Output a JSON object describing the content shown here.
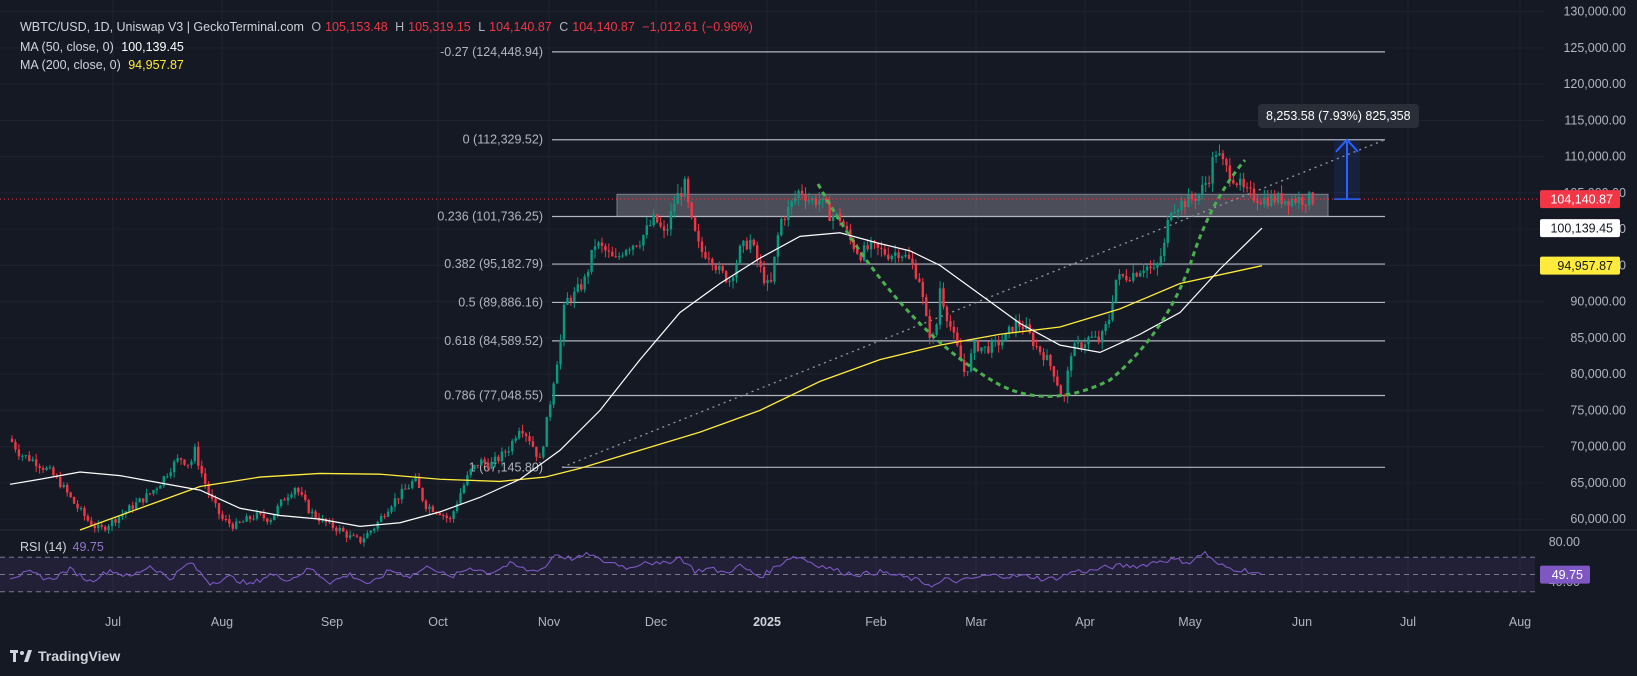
{
  "header": {
    "symbol": "WBTC/USD, 1D, Uniswap V3 | GeckoTerminal.com",
    "open_label": "O",
    "open": "105,153.48",
    "high_label": "H",
    "high": "105,319.15",
    "low_label": "L",
    "low": "104,140.87",
    "close_label": "C",
    "close": "104,140.87",
    "change": "−1,012.61 (−0.96%)",
    "ma50_label": "MA (50, close, 0)",
    "ma50_value": "100,139.45",
    "ma200_label": "MA (200, close, 0)",
    "ma200_value": "94,957.87"
  },
  "rsi": {
    "label": "RSI (14)",
    "value": "49.75"
  },
  "branding": {
    "name": "TradingView"
  },
  "tooltip": {
    "text": "8,253.58 (7.93%) 825,358"
  },
  "colors": {
    "background": "#151924",
    "up": "#089981",
    "down": "#f23645",
    "ma50": "#ffffff",
    "ma200": "#ffeb3b",
    "rsi": "#7e57c2",
    "cup": "#4caf50",
    "arrow": "#2962ff",
    "fib": "#b2b5be"
  },
  "chart_data": {
    "type": "candlestick",
    "x_tick_labels": [
      "Jul",
      "Aug",
      "Sep",
      "Oct",
      "Nov",
      "Dec",
      "2025",
      "Feb",
      "Mar",
      "Apr",
      "May",
      "Jun",
      "Jul",
      "Aug"
    ],
    "y_axis": {
      "ticks": [
        "60,000.00",
        "65,000.00",
        "70,000.00",
        "75,000.00",
        "80,000.00",
        "85,000.00",
        "90,000.00",
        "95,000.00",
        "100,000.00",
        "105,000.00",
        "110,000.00",
        "115,000.00",
        "120,000.00",
        "125,000.00",
        "130,000.00"
      ],
      "tick_values": [
        60000,
        65000,
        70000,
        75000,
        80000,
        85000,
        90000,
        95000,
        100000,
        105000,
        110000,
        115000,
        120000,
        125000,
        130000
      ],
      "range": [
        58500,
        130500
      ]
    },
    "rsi_axis": {
      "ticks": [
        "80.00",
        "40.00"
      ],
      "tick_values": [
        80,
        40
      ]
    },
    "price_badges": [
      {
        "label": "104,140.87",
        "value": 104140.87,
        "bg": "#f23645",
        "fg": "#ffffff"
      },
      {
        "label": "100,139.45",
        "value": 100139.45,
        "bg": "#ffffff",
        "fg": "#131722"
      },
      {
        "label": "94,957.87",
        "value": 94957.87,
        "bg": "#ffeb3b",
        "fg": "#131722"
      }
    ],
    "rsi_badge": {
      "label": "49.75",
      "value": 49.75
    },
    "fib_levels": [
      {
        "label": "-0.27 (124,448.94)",
        "value": 124448.94
      },
      {
        "label": "0 (112,329.52)",
        "value": 112329.52
      },
      {
        "label": "0.236 (101,736.25)",
        "value": 101736.25
      },
      {
        "label": "0.382 (95,182.79)",
        "value": 95182.79
      },
      {
        "label": "0.5 (89,886.16)",
        "value": 89886.16
      },
      {
        "label": "0.618 (84,589.52)",
        "value": 84589.52
      },
      {
        "label": "0.786 (77,048.55)",
        "value": 77048.55
      },
      {
        "label": "1 (67,145.80)",
        "value": 67145.8
      }
    ],
    "resistance_zone": [
      101736,
      104800
    ],
    "last_price": 104140.87,
    "price_path": [
      [
        0,
        70500
      ],
      [
        8,
        71500
      ],
      [
        20,
        69000
      ],
      [
        35,
        68000
      ],
      [
        50,
        66500
      ],
      [
        60,
        65000
      ],
      [
        75,
        62000
      ],
      [
        90,
        59500
      ],
      [
        100,
        58500
      ],
      [
        115,
        60000
      ],
      [
        130,
        61500
      ],
      [
        150,
        63500
      ],
      [
        160,
        65000
      ],
      [
        170,
        67000
      ],
      [
        180,
        68500
      ],
      [
        190,
        67500
      ],
      [
        195,
        69500
      ],
      [
        200,
        67000
      ],
      [
        210,
        63000
      ],
      [
        222,
        60000
      ],
      [
        235,
        59000
      ],
      [
        255,
        60500
      ],
      [
        270,
        60000
      ],
      [
        285,
        63000
      ],
      [
        295,
        64500
      ],
      [
        310,
        61000
      ],
      [
        325,
        59500
      ],
      [
        340,
        58500
      ],
      [
        350,
        57500
      ],
      [
        360,
        57000
      ],
      [
        375,
        59000
      ],
      [
        390,
        62000
      ],
      [
        405,
        64000
      ],
      [
        415,
        65500
      ],
      [
        425,
        62000
      ],
      [
        440,
        61000
      ],
      [
        450,
        59800
      ],
      [
        460,
        63500
      ],
      [
        470,
        66500
      ],
      [
        480,
        68000
      ],
      [
        490,
        67500
      ],
      [
        500,
        68500
      ],
      [
        510,
        70000
      ],
      [
        520,
        73000
      ],
      [
        530,
        71000
      ],
      [
        540,
        68000
      ],
      [
        550,
        76000
      ],
      [
        555,
        80500
      ],
      [
        560,
        84000
      ],
      [
        565,
        90000
      ],
      [
        575,
        91000
      ],
      [
        585,
        93000
      ],
      [
        595,
        98000
      ],
      [
        605,
        97000
      ],
      [
        615,
        95500
      ],
      [
        625,
        97500
      ],
      [
        640,
        98500
      ],
      [
        655,
        101500
      ],
      [
        665,
        99000
      ],
      [
        675,
        104000
      ],
      [
        685,
        106000
      ],
      [
        690,
        101500
      ],
      [
        700,
        97000
      ],
      [
        710,
        96500
      ],
      [
        720,
        94000
      ],
      [
        730,
        93000
      ],
      [
        740,
        97000
      ],
      [
        750,
        98500
      ],
      [
        760,
        94500
      ],
      [
        770,
        91500
      ],
      [
        780,
        101000
      ],
      [
        790,
        103000
      ],
      [
        800,
        105500
      ],
      [
        810,
        104000
      ],
      [
        820,
        104000
      ],
      [
        830,
        102000
      ],
      [
        840,
        101500
      ],
      [
        850,
        98500
      ],
      [
        860,
        96500
      ],
      [
        870,
        97500
      ],
      [
        880,
        97000
      ],
      [
        890,
        96500
      ],
      [
        900,
        97000
      ],
      [
        910,
        95500
      ],
      [
        920,
        93000
      ],
      [
        925,
        88000
      ],
      [
        930,
        85500
      ],
      [
        935,
        84500
      ],
      [
        940,
        92000
      ],
      [
        945,
        89000
      ],
      [
        955,
        84500
      ],
      [
        965,
        80000
      ],
      [
        975,
        84000
      ],
      [
        985,
        83500
      ],
      [
        995,
        84000
      ],
      [
        1005,
        85000
      ],
      [
        1015,
        87000
      ],
      [
        1025,
        86500
      ],
      [
        1035,
        84000
      ],
      [
        1045,
        82500
      ],
      [
        1055,
        80000
      ],
      [
        1060,
        77500
      ],
      [
        1065,
        76500
      ],
      [
        1070,
        83000
      ],
      [
        1080,
        84000
      ],
      [
        1090,
        85000
      ],
      [
        1100,
        84500
      ],
      [
        1110,
        88000
      ],
      [
        1115,
        93000
      ],
      [
        1125,
        93500
      ],
      [
        1135,
        94000
      ],
      [
        1145,
        95000
      ],
      [
        1155,
        94000
      ],
      [
        1165,
        98000
      ],
      [
        1170,
        103000
      ],
      [
        1180,
        103500
      ],
      [
        1190,
        104000
      ],
      [
        1200,
        105000
      ],
      [
        1210,
        107500
      ],
      [
        1215,
        111000
      ],
      [
        1225,
        108500
      ],
      [
        1235,
        107000
      ],
      [
        1245,
        105000
      ],
      [
        1255,
        104500
      ],
      [
        1263,
        104140
      ]
    ],
    "ma50_path": [
      [
        10,
        64800
      ],
      [
        40,
        65500
      ],
      [
        80,
        66500
      ],
      [
        120,
        66000
      ],
      [
        160,
        65000
      ],
      [
        200,
        64000
      ],
      [
        240,
        61500
      ],
      [
        280,
        60500
      ],
      [
        320,
        60000
      ],
      [
        360,
        59000
      ],
      [
        400,
        59500
      ],
      [
        440,
        61000
      ],
      [
        480,
        63000
      ],
      [
        520,
        65500
      ],
      [
        560,
        69500
      ],
      [
        600,
        75000
      ],
      [
        640,
        82000
      ],
      [
        680,
        88500
      ],
      [
        720,
        92500
      ],
      [
        760,
        96000
      ],
      [
        800,
        99000
      ],
      [
        840,
        99500
      ],
      [
        880,
        98000
      ],
      [
        910,
        97000
      ],
      [
        940,
        95000
      ],
      [
        980,
        91000
      ],
      [
        1020,
        87000
      ],
      [
        1060,
        84000
      ],
      [
        1100,
        83000
      ],
      [
        1140,
        85500
      ],
      [
        1180,
        88500
      ],
      [
        1220,
        94500
      ],
      [
        1262,
        100139
      ]
    ],
    "ma200_path": [
      [
        80,
        58500
      ],
      [
        150,
        62000
      ],
      [
        200,
        64500
      ],
      [
        260,
        65800
      ],
      [
        320,
        66300
      ],
      [
        380,
        66200
      ],
      [
        440,
        65500
      ],
      [
        500,
        65200
      ],
      [
        545,
        65800
      ],
      [
        580,
        67000
      ],
      [
        640,
        69500
      ],
      [
        700,
        72000
      ],
      [
        760,
        75000
      ],
      [
        820,
        79000
      ],
      [
        880,
        82000
      ],
      [
        940,
        84000
      ],
      [
        1000,
        85500
      ],
      [
        1060,
        86500
      ],
      [
        1120,
        89000
      ],
      [
        1180,
        92500
      ],
      [
        1262,
        94958
      ]
    ],
    "rsi_path": [
      [
        10,
        47
      ],
      [
        30,
        52
      ],
      [
        50,
        44
      ],
      [
        70,
        56
      ],
      [
        90,
        42
      ],
      [
        110,
        55
      ],
      [
        130,
        47
      ],
      [
        150,
        60
      ],
      [
        170,
        45
      ],
      [
        190,
        64
      ],
      [
        210,
        40
      ],
      [
        230,
        47
      ],
      [
        250,
        38
      ],
      [
        270,
        50
      ],
      [
        290,
        44
      ],
      [
        310,
        57
      ],
      [
        330,
        41
      ],
      [
        350,
        50
      ],
      [
        370,
        38
      ],
      [
        390,
        55
      ],
      [
        410,
        48
      ],
      [
        430,
        60
      ],
      [
        450,
        46
      ],
      [
        470,
        58
      ],
      [
        490,
        52
      ],
      [
        510,
        62
      ],
      [
        530,
        54
      ],
      [
        545,
        58
      ],
      [
        555,
        74
      ],
      [
        565,
        70
      ],
      [
        575,
        68
      ],
      [
        590,
        74
      ],
      [
        600,
        66
      ],
      [
        615,
        63
      ],
      [
        630,
        57
      ],
      [
        645,
        66
      ],
      [
        660,
        61
      ],
      [
        680,
        70
      ],
      [
        695,
        54
      ],
      [
        710,
        57
      ],
      [
        725,
        52
      ],
      [
        740,
        60
      ],
      [
        760,
        47
      ],
      [
        780,
        62
      ],
      [
        790,
        70
      ],
      [
        800,
        70
      ],
      [
        815,
        62
      ],
      [
        830,
        57
      ],
      [
        845,
        52
      ],
      [
        860,
        50
      ],
      [
        880,
        53
      ],
      [
        900,
        48
      ],
      [
        915,
        44
      ],
      [
        925,
        40
      ],
      [
        935,
        37
      ],
      [
        945,
        44
      ],
      [
        960,
        42
      ],
      [
        975,
        46
      ],
      [
        990,
        49
      ],
      [
        1010,
        48
      ],
      [
        1030,
        48
      ],
      [
        1045,
        44
      ],
      [
        1060,
        47
      ],
      [
        1075,
        54
      ],
      [
        1090,
        54
      ],
      [
        1105,
        58
      ],
      [
        1120,
        60
      ],
      [
        1140,
        60
      ],
      [
        1160,
        66
      ],
      [
        1175,
        67
      ],
      [
        1190,
        64
      ],
      [
        1205,
        76
      ],
      [
        1215,
        63
      ],
      [
        1230,
        57
      ],
      [
        1245,
        55
      ],
      [
        1262,
        49.75
      ]
    ]
  }
}
